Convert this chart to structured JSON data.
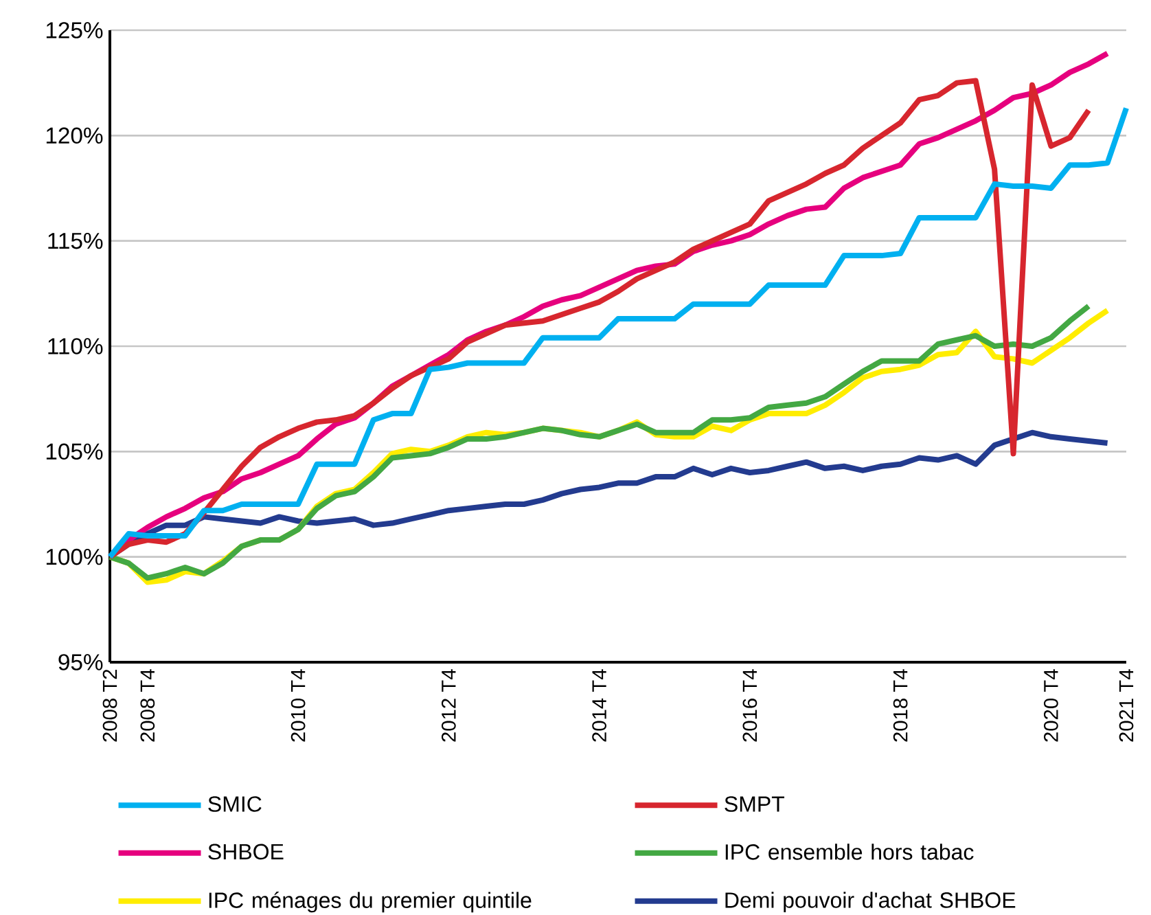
{
  "chart_data": {
    "type": "line",
    "categories": [
      "2008 T2",
      null,
      "2008 T4",
      null,
      null,
      null,
      null,
      null,
      null,
      null,
      "2010 T4",
      null,
      null,
      null,
      null,
      null,
      null,
      null,
      "2012 T4",
      null,
      null,
      null,
      null,
      null,
      null,
      null,
      "2014 T4",
      null,
      null,
      null,
      null,
      null,
      null,
      null,
      "2016 T4",
      null,
      null,
      null,
      null,
      null,
      null,
      null,
      "2018 T4",
      null,
      null,
      null,
      null,
      null,
      null,
      null,
      "2020 T4",
      null,
      null,
      null,
      "2021 T4"
    ],
    "ylim": [
      95,
      125
    ],
    "yticks": [
      {
        "value": 95,
        "label": "95%"
      },
      {
        "value": 100,
        "label": "100%"
      },
      {
        "value": 105,
        "label": "105%"
      },
      {
        "value": 110,
        "label": "110%"
      },
      {
        "value": 115,
        "label": "115%"
      },
      {
        "value": 120,
        "label": "120%"
      },
      {
        "value": 125,
        "label": "125%"
      }
    ],
    "grid": "y",
    "legend": "bottom",
    "series": [
      {
        "name": "SMIC",
        "color": "#00b0f0",
        "values": [
          100,
          101.1,
          101.0,
          101.0,
          101.0,
          102.2,
          102.2,
          102.5,
          102.5,
          102.5,
          102.5,
          104.4,
          104.4,
          104.4,
          106.5,
          106.8,
          106.8,
          108.9,
          109.0,
          109.2,
          109.2,
          109.2,
          109.2,
          110.4,
          110.4,
          110.4,
          110.4,
          111.3,
          111.3,
          111.3,
          111.3,
          112.0,
          112.0,
          112.0,
          112.0,
          112.9,
          112.9,
          112.9,
          112.9,
          114.3,
          114.3,
          114.3,
          114.4,
          116.1,
          116.1,
          116.1,
          116.1,
          117.7,
          117.6,
          117.6,
          117.5,
          118.6,
          118.6,
          118.7,
          121.3
        ]
      },
      {
        "name": "SMPT",
        "color": "#d7262e",
        "values": [
          100,
          100.6,
          100.8,
          100.7,
          101.1,
          102.1,
          103.2,
          104.3,
          105.2,
          105.7,
          106.1,
          106.4,
          106.5,
          106.7,
          107.3,
          108.0,
          108.6,
          109.0,
          109.4,
          110.2,
          110.6,
          111.0,
          111.1,
          111.2,
          111.5,
          111.8,
          112.1,
          112.6,
          113.2,
          113.6,
          114.0,
          114.6,
          115.0,
          115.4,
          115.8,
          116.9,
          117.3,
          117.7,
          118.2,
          118.6,
          119.4,
          120.0,
          120.6,
          121.7,
          121.9,
          122.5,
          122.6,
          118.4,
          104.9,
          122.4,
          119.5,
          119.9,
          121.2,
          null,
          null
        ]
      },
      {
        "name": "SHBOE",
        "color": "#e6007e",
        "values": [
          100,
          100.8,
          101.4,
          101.9,
          102.3,
          102.8,
          103.1,
          103.7,
          104.0,
          104.4,
          104.8,
          105.6,
          106.3,
          106.6,
          107.3,
          108.1,
          108.6,
          109.1,
          109.6,
          110.3,
          110.7,
          111.0,
          111.4,
          111.9,
          112.2,
          112.4,
          112.8,
          113.2,
          113.6,
          113.8,
          113.9,
          114.5,
          114.8,
          115.0,
          115.3,
          115.8,
          116.2,
          116.5,
          116.6,
          117.5,
          118.0,
          118.3,
          118.6,
          119.6,
          119.9,
          120.3,
          120.7,
          121.2,
          121.8,
          122.0,
          122.4,
          123.0,
          123.4,
          123.9,
          null
        ]
      },
      {
        "name": "IPC ensemble hors tabac",
        "color": "#43a843",
        "values": [
          100,
          99.7,
          99.0,
          99.2,
          99.5,
          99.2,
          99.7,
          100.5,
          100.8,
          100.8,
          101.3,
          102.3,
          102.9,
          103.1,
          103.8,
          104.7,
          104.8,
          104.9,
          105.2,
          105.6,
          105.6,
          105.7,
          105.9,
          106.1,
          106.0,
          105.8,
          105.7,
          106.0,
          106.3,
          105.9,
          105.9,
          105.9,
          106.5,
          106.5,
          106.6,
          107.1,
          107.2,
          107.3,
          107.6,
          108.2,
          108.8,
          109.3,
          109.3,
          109.3,
          110.1,
          110.3,
          110.5,
          110.0,
          110.1,
          110.0,
          110.4,
          111.2,
          111.9,
          null,
          null
        ]
      },
      {
        "name": "IPC ménages du premier quintile",
        "color": "#ffed00",
        "values": [
          100,
          99.7,
          98.8,
          98.9,
          99.3,
          99.2,
          99.8,
          100.5,
          100.8,
          100.8,
          101.3,
          102.4,
          103.0,
          103.2,
          104.0,
          104.9,
          105.1,
          105.0,
          105.3,
          105.7,
          105.9,
          105.8,
          105.9,
          106.1,
          106.0,
          105.9,
          105.7,
          106.0,
          106.4,
          105.8,
          105.7,
          105.7,
          106.2,
          106.0,
          106.5,
          106.8,
          106.8,
          106.8,
          107.2,
          107.8,
          108.5,
          108.8,
          108.9,
          109.1,
          109.6,
          109.7,
          110.7,
          109.5,
          109.4,
          109.2,
          109.8,
          110.4,
          111.1,
          111.7,
          null
        ]
      },
      {
        "name": "Demi pouvoir d'achat SHBOE",
        "color": "#233b8f",
        "values": [
          100,
          100.6,
          101.1,
          101.5,
          101.5,
          101.9,
          101.8,
          101.7,
          101.6,
          101.9,
          101.7,
          101.6,
          101.7,
          101.8,
          101.5,
          101.6,
          101.8,
          102.0,
          102.2,
          102.3,
          102.4,
          102.5,
          102.5,
          102.7,
          103.0,
          103.2,
          103.3,
          103.5,
          103.5,
          103.8,
          103.8,
          104.2,
          103.9,
          104.2,
          104.0,
          104.1,
          104.3,
          104.5,
          104.2,
          104.3,
          104.1,
          104.3,
          104.4,
          104.7,
          104.6,
          104.8,
          104.4,
          105.3,
          105.6,
          105.9,
          105.7,
          105.6,
          105.5,
          105.4,
          null
        ]
      }
    ]
  }
}
